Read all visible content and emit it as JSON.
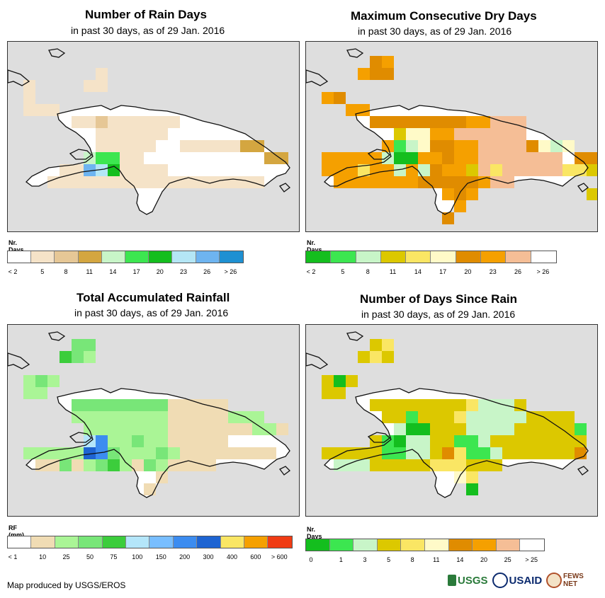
{
  "panels": [
    {
      "title": "Number of Rain Days",
      "subtitle": "in past 30 days, as of 29 Jan. 2016",
      "legend_title": "Nr. Days",
      "legend_colors": [
        "#ffffff",
        "#f5e3c8",
        "#e6c796",
        "#d4a640",
        "#c8f5c8",
        "#3ce650",
        "#14be1e",
        "#b4e6f5",
        "#6eb4f0",
        "#1e90d2"
      ],
      "legend_labels": [
        "< 2",
        "5",
        "8",
        "11",
        "14",
        "17",
        "20",
        "23",
        "26",
        "> 26"
      ],
      "label_mode": "boundary"
    },
    {
      "title": "Maximum Consecutive Dry Days",
      "subtitle": "in past 30 days, as of 29 Jan. 2016",
      "legend_title": "Nr. Days",
      "legend_colors": [
        "#14be1e",
        "#3ce650",
        "#c8f5c8",
        "#dcc800",
        "#fae664",
        "#fffac8",
        "#e08c00",
        "#f5a000",
        "#f5be96",
        "#ffffff"
      ],
      "legend_labels": [
        "< 2",
        "5",
        "8",
        "11",
        "14",
        "17",
        "20",
        "23",
        "26",
        "> 26"
      ],
      "label_mode": "boundary"
    },
    {
      "title": "Total Accumulated Rainfall",
      "subtitle": "in past 30 days, as of 29 Jan. 2016",
      "legend_title": "RF (mm)",
      "legend_colors": [
        "#ffffff",
        "#f0dcb4",
        "#aaf596",
        "#78e678",
        "#3ccd3c",
        "#b4e6fa",
        "#78beff",
        "#3c8cf0",
        "#1e64d2",
        "#fae664",
        "#f5a000",
        "#f03c14"
      ],
      "legend_labels": [
        "< 1",
        "10",
        "25",
        "50",
        "75",
        "100",
        "150",
        "200",
        "300",
        "400",
        "600",
        "> 600"
      ],
      "label_mode": "boundary"
    },
    {
      "title": "Number of Days Since Rain",
      "subtitle": "in past 30 days, as of 29 Jan. 2016",
      "legend_title": "Nr. Days",
      "legend_colors": [
        "#14be1e",
        "#3ce650",
        "#c8f5c8",
        "#dcc800",
        "#fae664",
        "#fffac8",
        "#e08c00",
        "#f5a000",
        "#f5be96",
        "#ffffff"
      ],
      "legend_labels": [
        "0",
        "1",
        "3",
        "5",
        "8",
        "11",
        "14",
        "20",
        "25",
        "> 25"
      ],
      "label_mode": "boundary"
    }
  ],
  "credit": "Map produced by USGS/EROS",
  "logos": {
    "usgs": "USGS",
    "usaid": "USAID",
    "fews": "FEWS NET"
  }
}
